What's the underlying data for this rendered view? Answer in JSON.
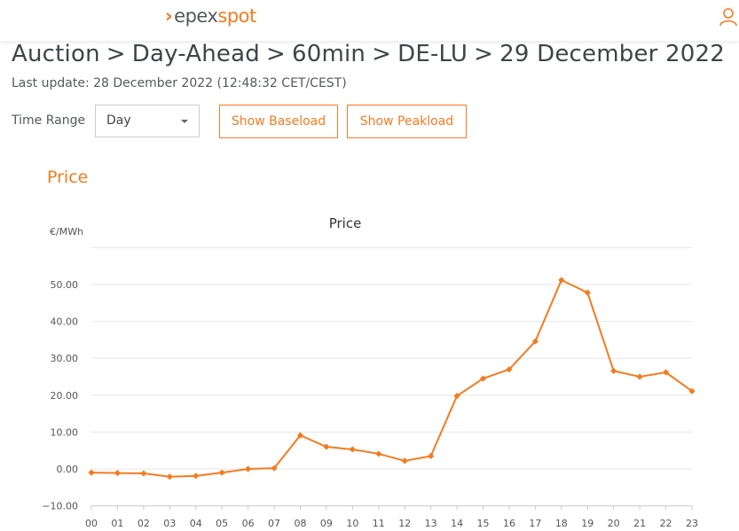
{
  "header": {
    "logo_left": "epex",
    "logo_right": "spot",
    "logo_chevron": "›",
    "user_icon": "user-icon"
  },
  "breadcrumb": [
    "Auction",
    "Day-Ahead",
    "60min",
    "DE-LU",
    "29 December 2022"
  ],
  "breadcrumb_separator": ">",
  "last_update": "Last update: 28 December 2022 (12:48:32 CET/CEST)",
  "filters": {
    "time_range_label": "Time Range",
    "time_range_value": "Day",
    "show_baseload": "Show Baseload",
    "show_peakload": "Show Peakload"
  },
  "section_title": "Price",
  "colors": {
    "accent": "#f47b20",
    "grid": "#e6e6e6"
  },
  "chart_data": {
    "type": "line",
    "title": "Price",
    "ylabel": "€/MWh",
    "xlabel": "",
    "categories": [
      "00",
      "01",
      "02",
      "03",
      "04",
      "05",
      "06",
      "07",
      "08",
      "09",
      "10",
      "11",
      "12",
      "13",
      "14",
      "15",
      "16",
      "17",
      "18",
      "19",
      "20",
      "21",
      "22",
      "23"
    ],
    "series": [
      {
        "values": [
          -1.0,
          -1.1,
          -1.2,
          -2.1,
          -1.9,
          -1.0,
          0.0,
          0.2,
          9.1,
          6.0,
          5.3,
          4.1,
          2.2,
          3.5,
          19.8,
          24.5,
          27.0,
          34.6,
          51.2,
          47.8,
          26.6,
          25.0,
          26.2,
          21.1
        ]
      }
    ],
    "yticks": [
      -10,
      0,
      10,
      20,
      30,
      40,
      50
    ],
    "ytick_labels": [
      "−10.00",
      "0.00",
      "10.00",
      "20.00",
      "30.00",
      "40.00",
      "50.00"
    ],
    "ylim": [
      -10,
      60
    ],
    "grid": true,
    "legend": "none"
  }
}
